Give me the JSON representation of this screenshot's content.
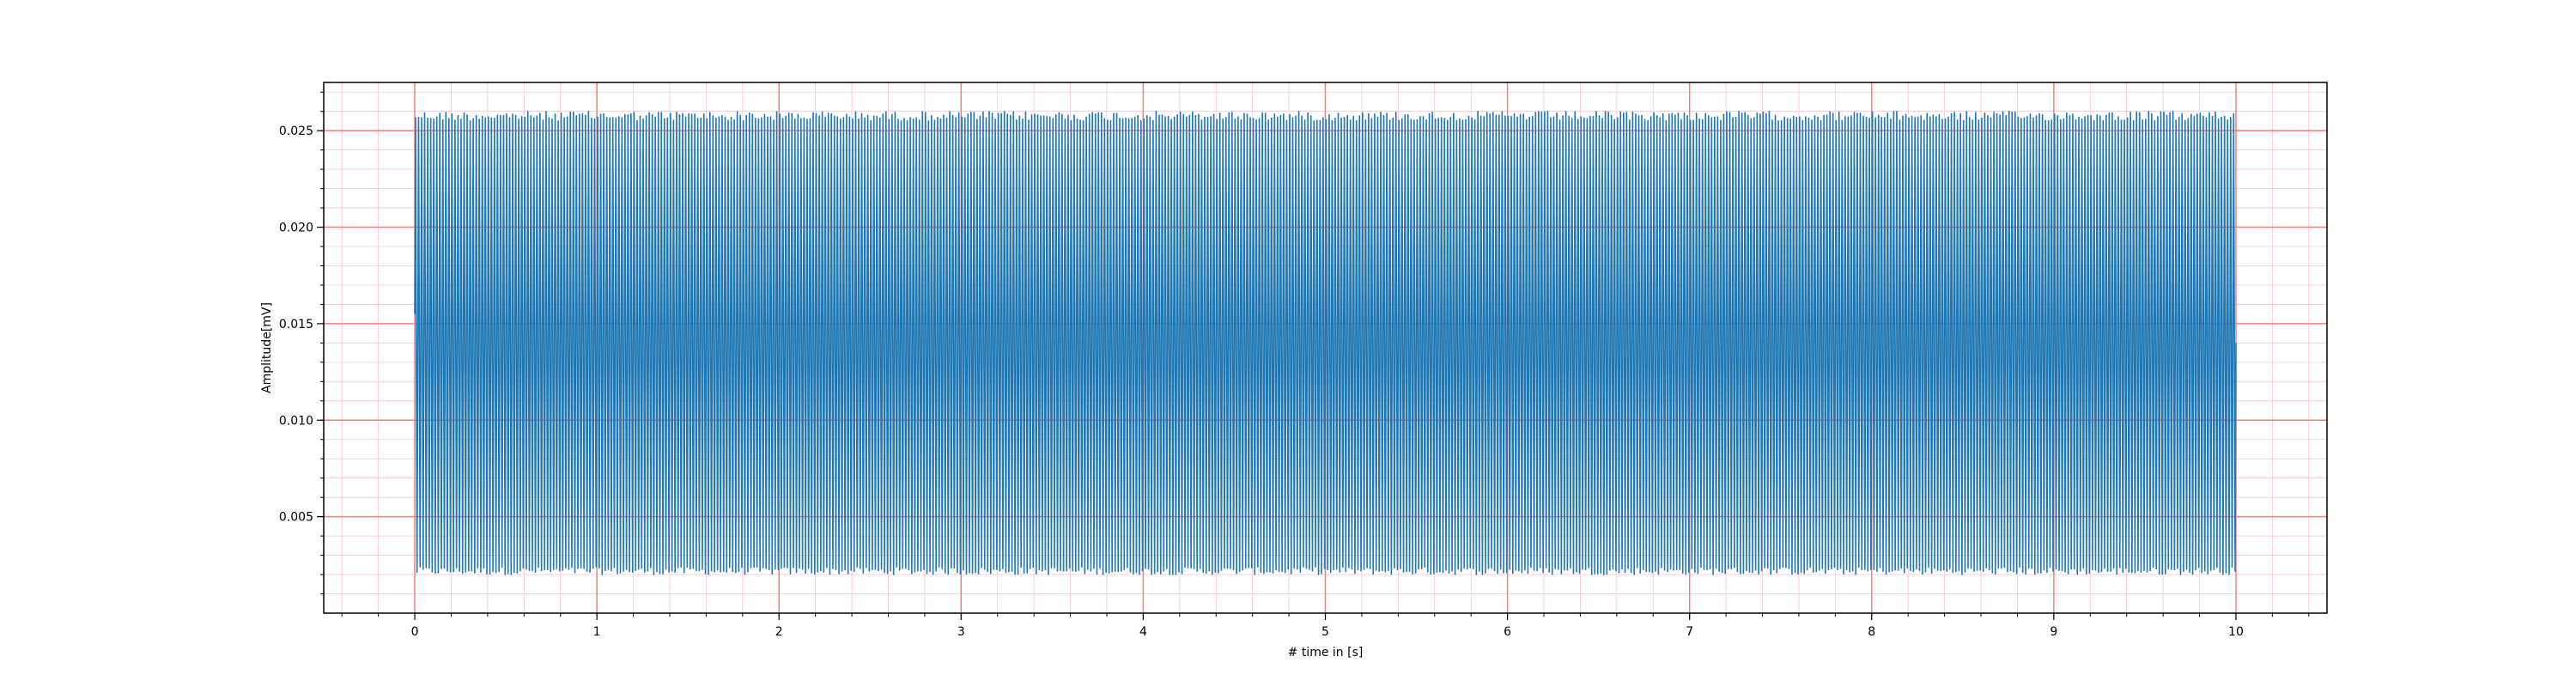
{
  "chart_data": {
    "type": "line",
    "title": "",
    "xlabel": "# time in [s]",
    "ylabel": "Amplitude[mV]",
    "xlim": [
      -0.5,
      10.5
    ],
    "ylim": [
      0.0,
      0.0275
    ],
    "x_ticks": [
      0,
      1,
      2,
      3,
      4,
      5,
      6,
      7,
      8,
      9,
      10
    ],
    "x_tick_labels": [
      "0",
      "1",
      "2",
      "3",
      "4",
      "5",
      "6",
      "7",
      "8",
      "9",
      "10"
    ],
    "y_ticks": [
      0.005,
      0.01,
      0.015,
      0.02,
      0.025
    ],
    "y_tick_labels": [
      "0.005",
      "0.010",
      "0.015",
      "0.020",
      "0.025"
    ],
    "grid": {
      "major": true,
      "minor": true,
      "major_color": "#f08080",
      "minor_color": "#f3c6d6"
    },
    "series": [
      {
        "color": "#1f77b4",
        "x_start": 0.0,
        "x_end": 10.0,
        "y_start": 0.0155,
        "y_max_approx": 0.026,
        "y_min_approx": 0.002,
        "approx_cycles": 600
      }
    ]
  }
}
